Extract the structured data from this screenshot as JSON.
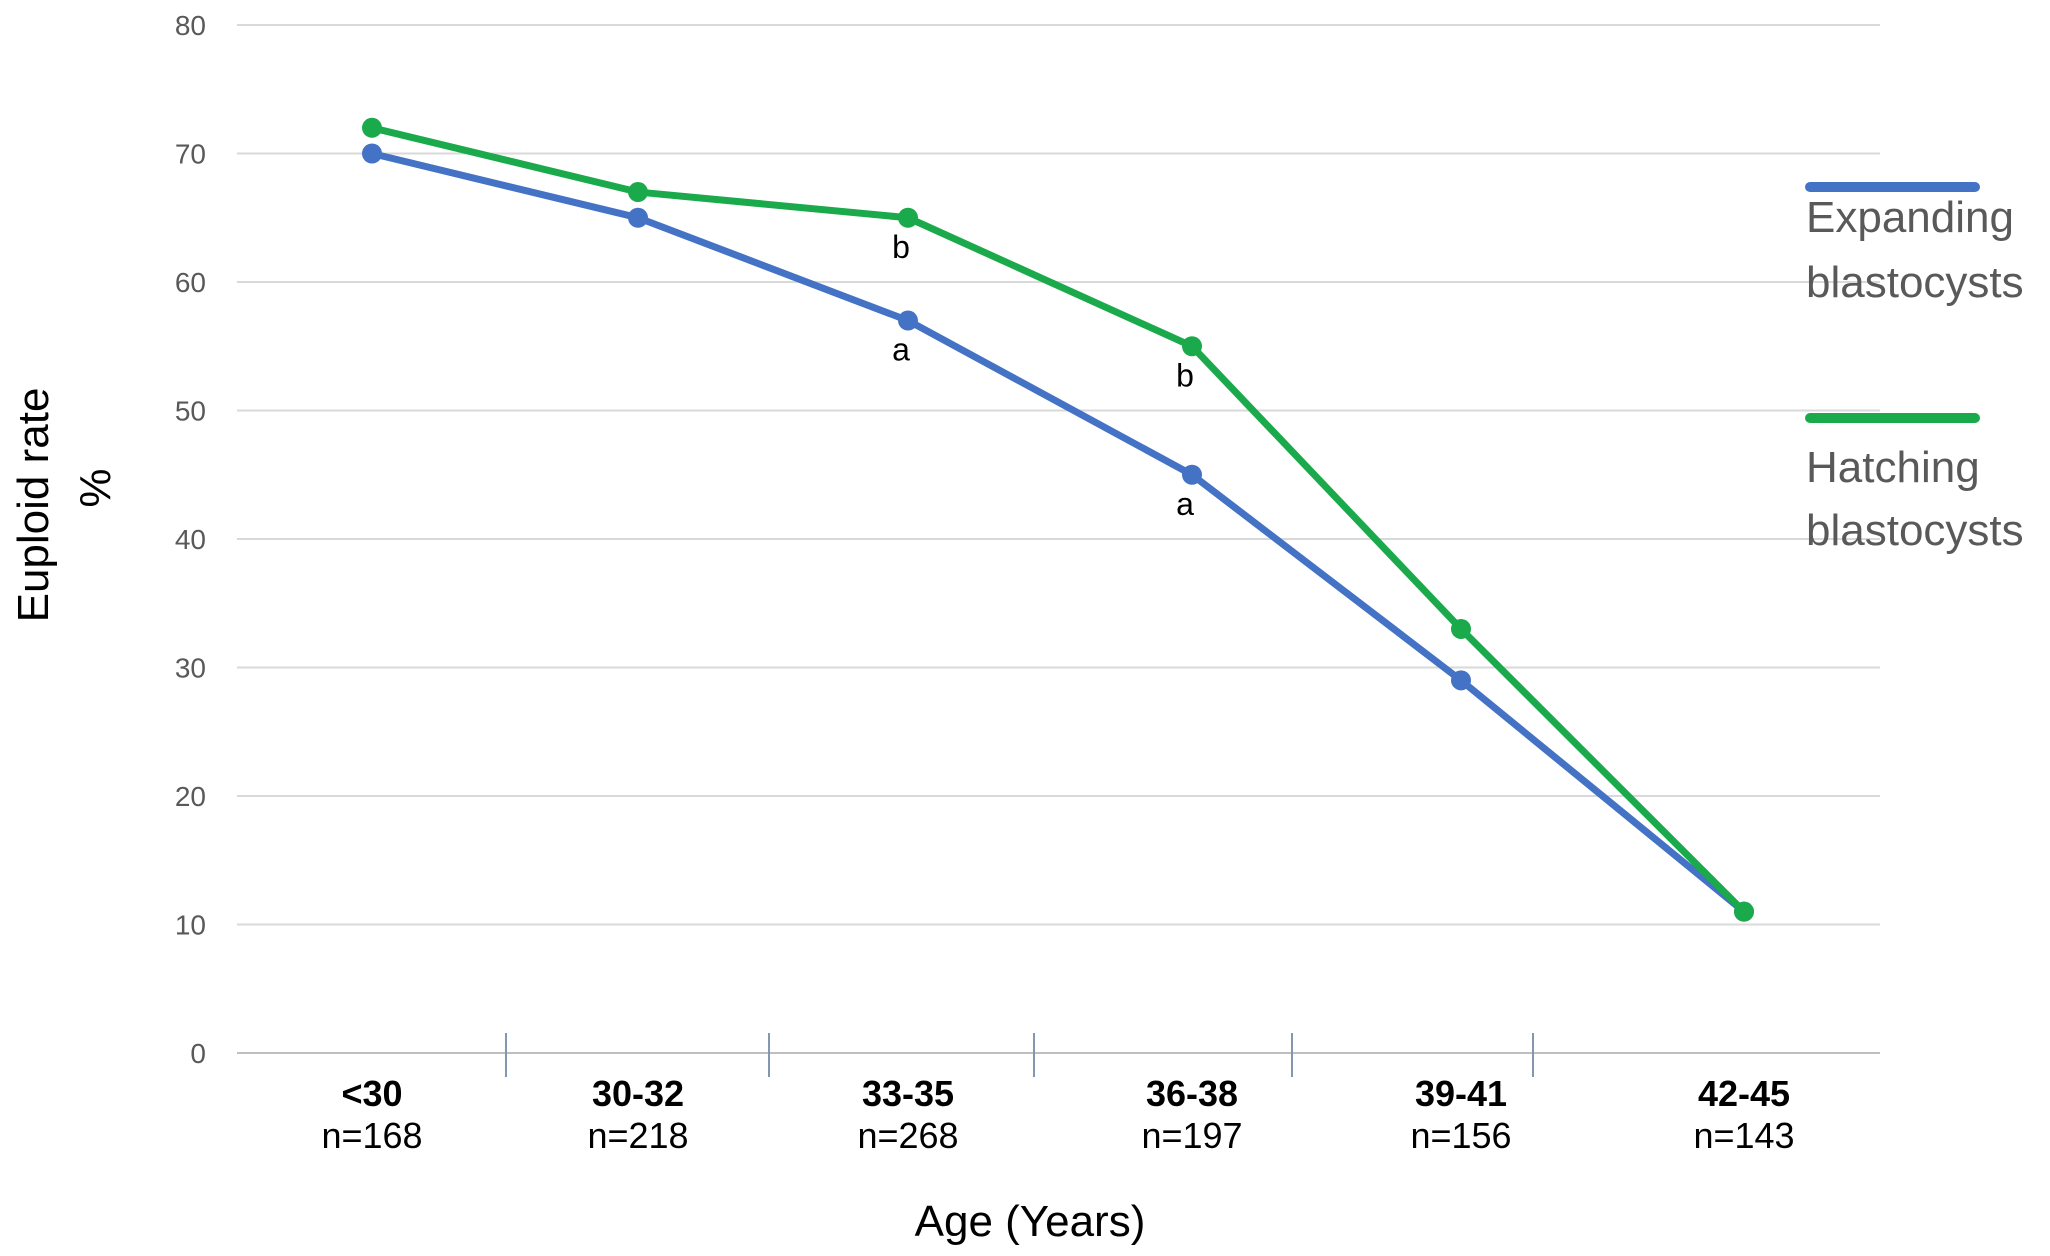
{
  "chart_data": {
    "type": "line",
    "categories": [
      "<30",
      "30-32",
      "33-35",
      "36-38",
      "39-41",
      "42-45"
    ],
    "category_n": [
      "n=168",
      "n=218",
      "n=268",
      "n=197",
      "n=156",
      "n=143"
    ],
    "series": [
      {
        "name": [
          "Expanding",
          "blastocysts"
        ],
        "color": "#4472C4",
        "values": [
          70,
          65,
          57,
          45,
          29,
          11
        ],
        "annotations": [
          "",
          "",
          "a",
          "a",
          "",
          ""
        ]
      },
      {
        "name": [
          "Hatching",
          "blastocysts"
        ],
        "color": "#1AAA4B",
        "values": [
          72,
          67,
          65,
          55,
          33,
          11
        ],
        "annotations": [
          "",
          "",
          "b",
          "b",
          "",
          ""
        ]
      }
    ],
    "yticks": [
      "0",
      "10",
      "20",
      "30",
      "40",
      "50",
      "60",
      "70",
      "80"
    ],
    "ylim": [
      0,
      80
    ],
    "ylabel": [
      "Euploid rate",
      "%"
    ],
    "xlabel": "Age (Years)",
    "grid": true,
    "legend": "right",
    "colors": {
      "grid": "#D9D9D9",
      "axis": "#BFBFBF",
      "divider": "#8497B0"
    }
  }
}
